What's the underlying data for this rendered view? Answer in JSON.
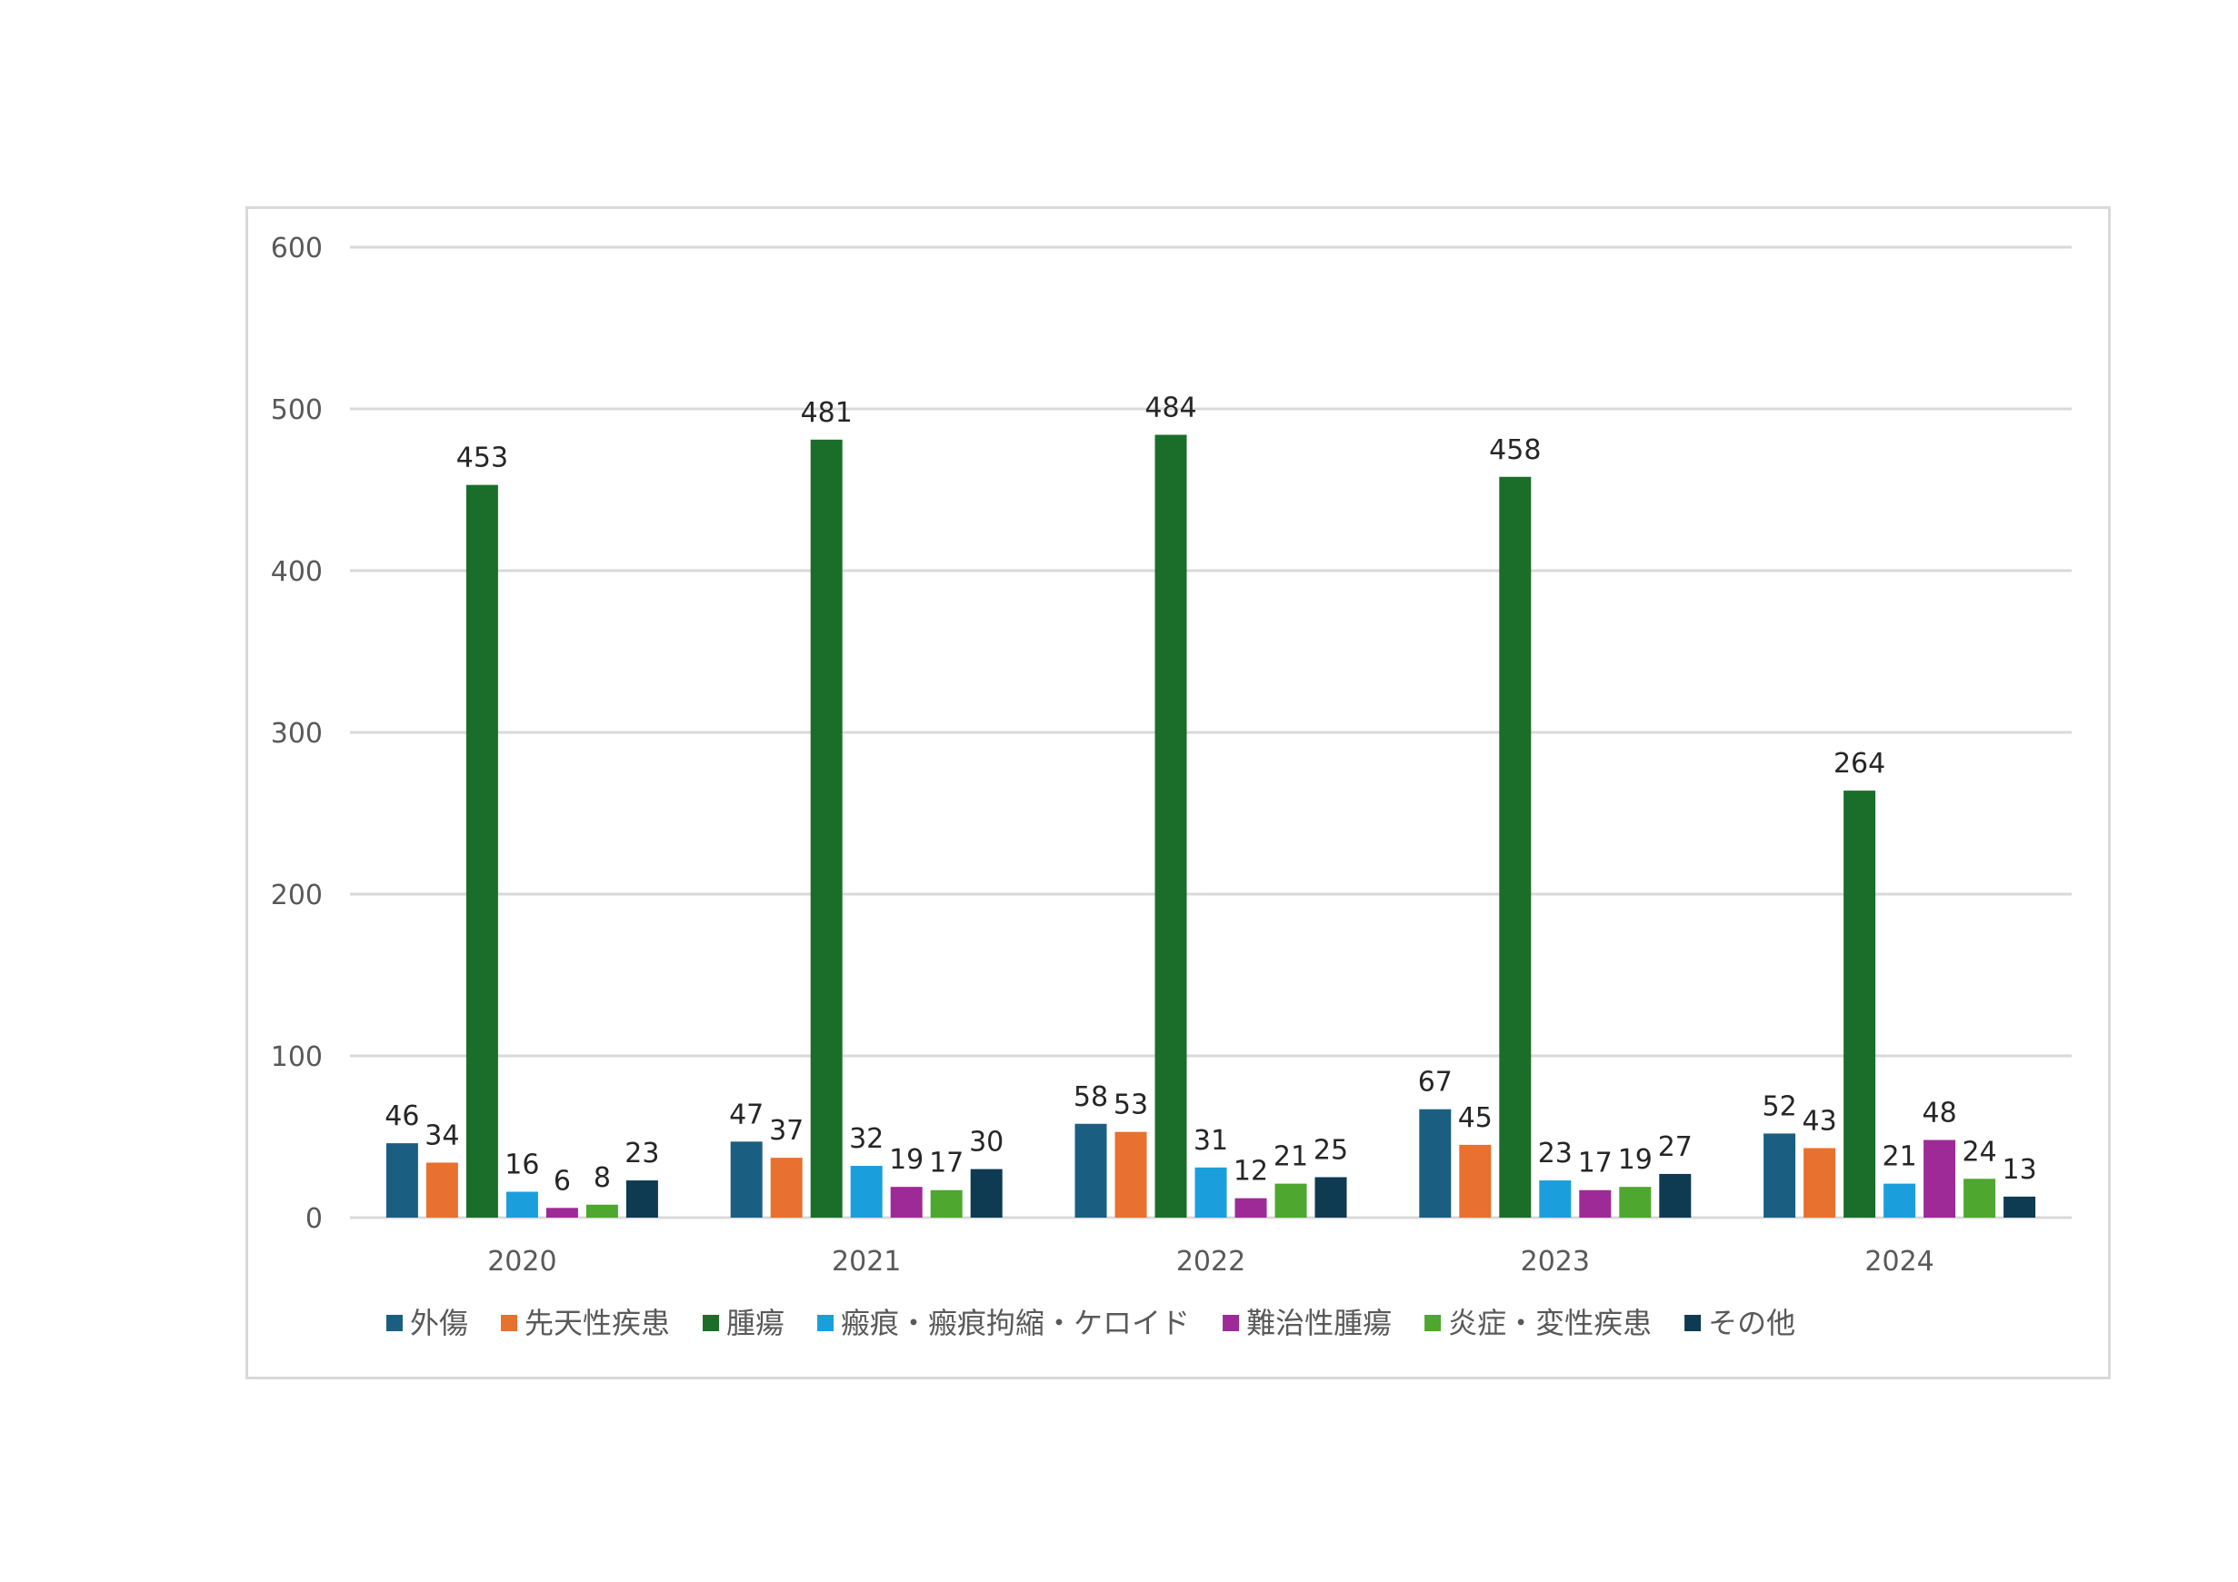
{
  "chart_data": {
    "type": "bar",
    "title": "",
    "xlabel": "",
    "ylabel": "",
    "ylim": [
      0,
      600
    ],
    "yticks": [
      "0",
      "100",
      "200",
      "300",
      "400",
      "500",
      "600"
    ],
    "grid": true,
    "legend_position": "bottom",
    "categories": [
      "2020",
      "2021",
      "2022",
      "2023",
      "2024"
    ],
    "series": [
      {
        "name": "外傷",
        "color": "#1a5f82",
        "values": [
          46,
          47,
          58,
          67,
          52
        ]
      },
      {
        "name": "先天性疾患",
        "color": "#e8712f",
        "values": [
          34,
          37,
          53,
          45,
          43
        ]
      },
      {
        "name": "腫瘍",
        "color": "#1b6e2a",
        "values": [
          453,
          481,
          484,
          458,
          264
        ]
      },
      {
        "name": "瘢痕・瘢痕拘縮・ケロイド",
        "color": "#1a9fdc",
        "values": [
          16,
          32,
          31,
          23,
          21
        ]
      },
      {
        "name": "難治性腫瘍",
        "color": "#9e2a97",
        "values": [
          6,
          19,
          12,
          17,
          48
        ]
      },
      {
        "name": "炎症・変性疾患",
        "color": "#4ea72e",
        "values": [
          8,
          17,
          21,
          19,
          24
        ]
      },
      {
        "name": "その他",
        "color": "#0e3a52",
        "values": [
          23,
          30,
          25,
          27,
          13
        ]
      }
    ]
  }
}
